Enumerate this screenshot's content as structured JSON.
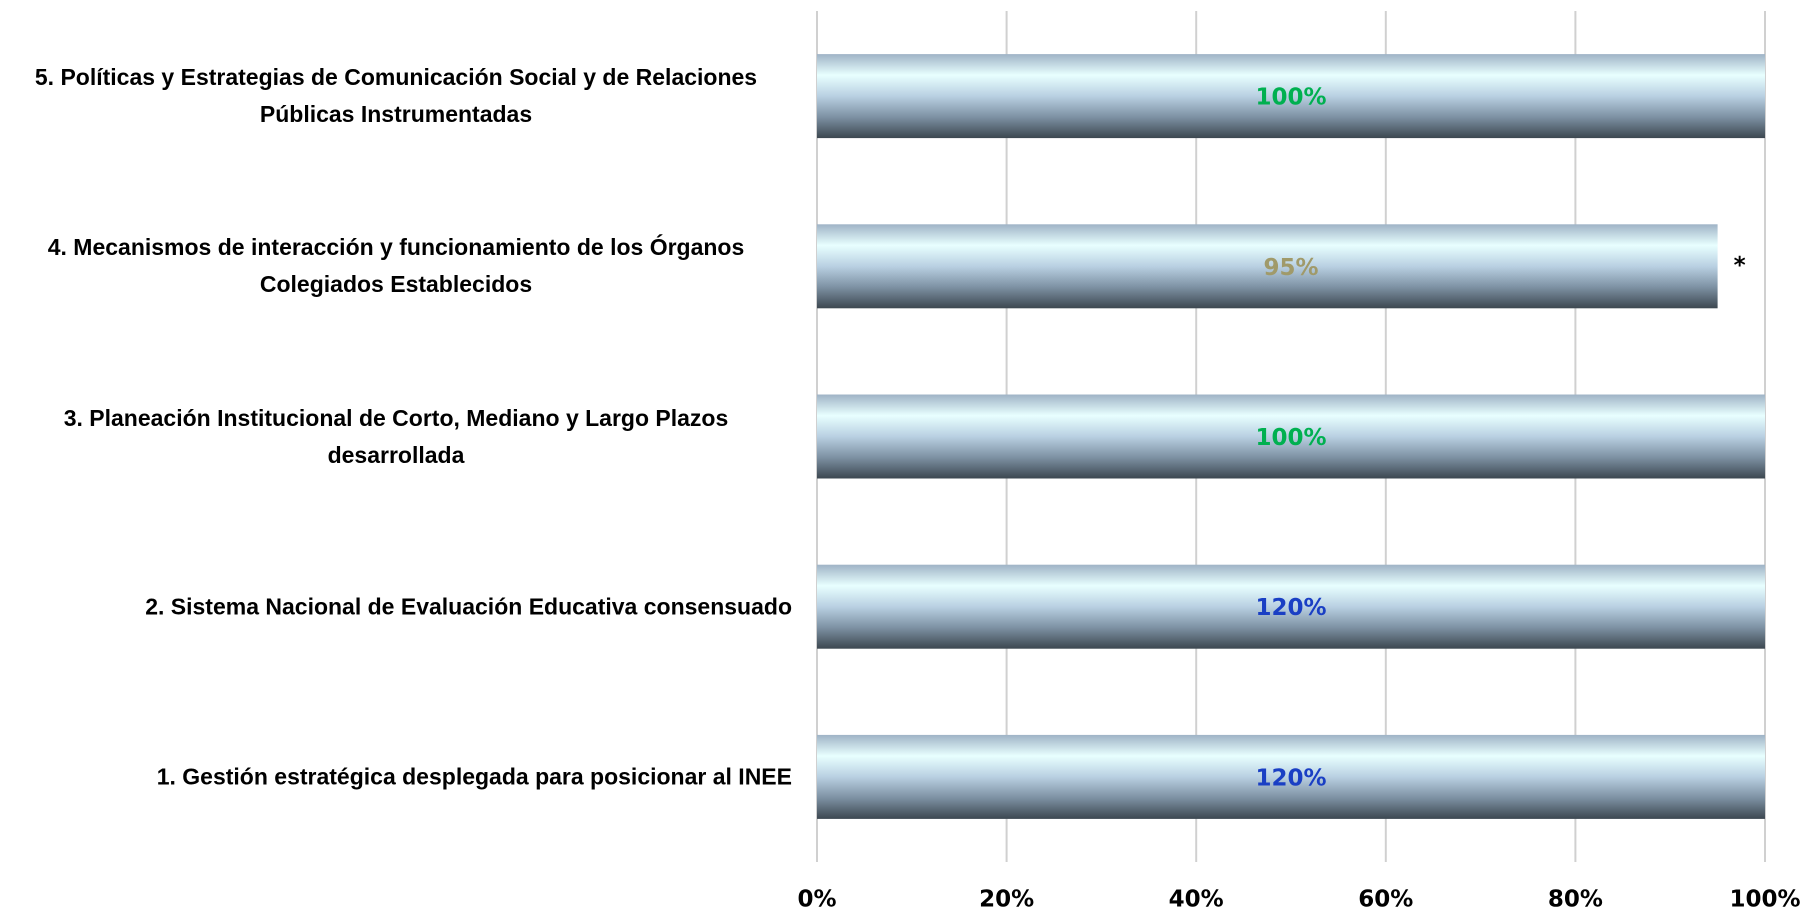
{
  "chart_data": {
    "type": "barh",
    "categories": [
      "1. Gestión estratégica desplegada para posicionar al INEE",
      "2. Sistema Nacional de Evaluación Educativa consensuado",
      "3. Planeación Institucional de Corto, Mediano y Largo Plazos desarrollada",
      "4. Mecanismos de interacción y funcionamiento de los Órganos Colegiados Establecidos",
      "5. Políticas y Estrategias de Comunicación Social y de Relaciones Públicas Instrumentadas"
    ],
    "values": [
      120,
      120,
      100,
      95,
      100
    ],
    "value_labels": [
      "120%",
      "120%",
      "100%",
      "95%",
      "100%"
    ],
    "label_colors": [
      "#1a3fc4",
      "#1a3fc4",
      "#00b050",
      "#a09a6a",
      "#00b050"
    ],
    "annotations": [
      {
        "text": "*",
        "category": 3
      }
    ],
    "xlim": [
      0,
      100
    ],
    "xticks": [
      {
        "value": 0,
        "label": "0%"
      },
      {
        "value": 20,
        "label": "20%"
      },
      {
        "value": 40,
        "label": "40%"
      },
      {
        "value": 60,
        "label": "60%"
      },
      {
        "value": 80,
        "label": "80%"
      },
      {
        "value": 100,
        "label": "100%"
      }
    ],
    "grid": true
  }
}
